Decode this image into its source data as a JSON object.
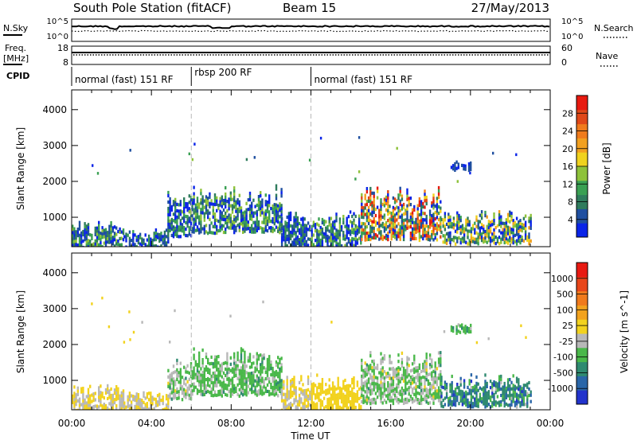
{
  "header": {
    "station": "South Pole Station (fitACF)",
    "beam": "Beam 15",
    "date": "27/May/2013"
  },
  "status_panels": {
    "nsky_label": "N.Sky",
    "nsearch_label": "N.Search",
    "noise_ticks": [
      "10^5",
      "10^0"
    ],
    "freq_label_1": "Freq.",
    "freq_label_2": "[MHz]",
    "freq_ticks": [
      "18",
      "8"
    ],
    "nave_label": "Nave",
    "nave_ticks": [
      "60",
      "0"
    ],
    "cpid_label": "CPID"
  },
  "cpid_segments": [
    {
      "label": "normal (fast) 151 RF",
      "start_hour": 0
    },
    {
      "label": "rbsp 200 RF",
      "start_hour": 6
    },
    {
      "label": "normal (fast) 151 RF",
      "start_hour": 12
    }
  ],
  "chart_data": [
    {
      "type": "heatmap",
      "parameter": "Power",
      "ylabel": "Slant Range [km]",
      "xlabel": "",
      "x_ticks": [
        "00:00",
        "04:00",
        "08:00",
        "12:00",
        "16:00",
        "20:00",
        "00:00"
      ],
      "y_ticks": [
        "1000",
        "2000",
        "3000",
        "4000"
      ],
      "y_tick_values": [
        1000,
        2000,
        3000,
        4000
      ],
      "xlim_hours": [
        0,
        24
      ],
      "ylim_km": [
        180,
        4550
      ],
      "colorbar": {
        "label": "Power [dB]",
        "ticks": [
          "4",
          "8",
          "12",
          "16",
          "20",
          "24",
          "28"
        ],
        "colors": [
          "#0a24e8",
          "#1f4fa0",
          "#2f7c5d",
          "#3aa053",
          "#8ec23b",
          "#f0d21e",
          "#f2a020",
          "#f07b1c",
          "#e04818",
          "#e81a10"
        ]
      },
      "echo_regions": [
        {
          "start_hour": 0.0,
          "end_hour": 2.6,
          "range_min_km": 200,
          "range_max_km": 900,
          "value_range": [
            4,
            16
          ]
        },
        {
          "start_hour": 2.6,
          "end_hour": 4.8,
          "range_min_km": 200,
          "range_max_km": 700,
          "value_range": [
            4,
            12
          ]
        },
        {
          "start_hour": 4.8,
          "end_hour": 6.0,
          "range_min_km": 500,
          "range_max_km": 1800,
          "value_range": [
            4,
            14
          ]
        },
        {
          "start_hour": 6.0,
          "end_hour": 10.5,
          "range_min_km": 600,
          "range_max_km": 1950,
          "value_range": [
            4,
            16
          ]
        },
        {
          "start_hour": 10.5,
          "end_hour": 12.0,
          "range_min_km": 200,
          "range_max_km": 1200,
          "value_range": [
            4,
            12
          ]
        },
        {
          "start_hour": 12.0,
          "end_hour": 14.5,
          "range_min_km": 200,
          "range_max_km": 1200,
          "value_range": [
            4,
            16
          ]
        },
        {
          "start_hour": 14.5,
          "end_hour": 18.5,
          "range_min_km": 400,
          "range_max_km": 1900,
          "value_range": [
            4,
            28
          ]
        },
        {
          "start_hour": 18.5,
          "end_hour": 23.0,
          "range_min_km": 300,
          "range_max_km": 1200,
          "value_range": [
            4,
            20
          ]
        },
        {
          "start_hour": 19.0,
          "end_hour": 20.0,
          "range_min_km": 2350,
          "range_max_km": 2600,
          "value_range": [
            4,
            8
          ]
        }
      ]
    },
    {
      "type": "heatmap",
      "parameter": "Velocity",
      "ylabel": "Slant Range [km]",
      "xlabel": "Time UT",
      "x_ticks": [
        "00:00",
        "04:00",
        "08:00",
        "12:00",
        "16:00",
        "20:00",
        "00:00"
      ],
      "y_ticks": [
        "1000",
        "2000",
        "3000",
        "4000"
      ],
      "y_tick_values": [
        1000,
        2000,
        3000,
        4000
      ],
      "xlim_hours": [
        0,
        24
      ],
      "ylim_km": [
        180,
        4550
      ],
      "colorbar": {
        "label": "Velocity [m s^-1]",
        "ticks": [
          "1000",
          "500",
          "100",
          "25",
          "-25",
          "-100",
          "-500",
          "-1000"
        ],
        "colors": [
          "#2233cc",
          "#2a66a8",
          "#2f8a70",
          "#4ab84a",
          "#b8b8b8",
          "#f2d21e",
          "#f2a21e",
          "#f07a1c",
          "#e8461a",
          "#e81a12"
        ]
      },
      "echo_regions": [
        {
          "start_hour": 0.0,
          "end_hour": 2.6,
          "range_min_km": 200,
          "range_max_km": 900,
          "value_range": [
            -100,
            100
          ]
        },
        {
          "start_hour": 2.6,
          "end_hour": 4.8,
          "range_min_km": 200,
          "range_max_km": 700,
          "value_range": [
            -100,
            100
          ]
        },
        {
          "start_hour": 4.8,
          "end_hour": 6.0,
          "range_min_km": 500,
          "range_max_km": 1800,
          "value_range": [
            -500,
            100
          ]
        },
        {
          "start_hour": 6.0,
          "end_hour": 10.5,
          "range_min_km": 600,
          "range_max_km": 1950,
          "value_range": [
            -500,
            -25
          ]
        },
        {
          "start_hour": 10.5,
          "end_hour": 12.0,
          "range_min_km": 200,
          "range_max_km": 1200,
          "value_range": [
            -100,
            100
          ]
        },
        {
          "start_hour": 12.0,
          "end_hour": 14.5,
          "range_min_km": 200,
          "range_max_km": 1200,
          "value_range": [
            25,
            100
          ]
        },
        {
          "start_hour": 14.5,
          "end_hour": 18.5,
          "range_min_km": 400,
          "range_max_km": 1900,
          "value_range": [
            -500,
            100
          ]
        },
        {
          "start_hour": 18.5,
          "end_hour": 23.0,
          "range_min_km": 300,
          "range_max_km": 1200,
          "value_range": [
            -1000,
            -100
          ]
        },
        {
          "start_hour": 19.0,
          "end_hour": 20.0,
          "range_min_km": 2350,
          "range_max_km": 2600,
          "value_range": [
            -500,
            -100
          ]
        }
      ]
    }
  ]
}
